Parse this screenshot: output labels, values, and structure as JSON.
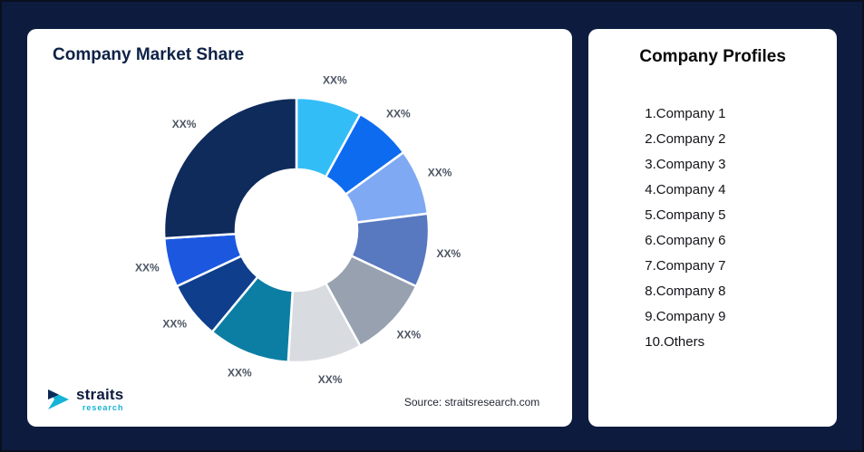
{
  "background_color": "#0D1B3E",
  "left_card": {
    "title": "Company Market Share",
    "source": "Source: straitsresearch.com",
    "logo": {
      "name": "straits",
      "sub": "research",
      "icon": "straits-arrow-icon",
      "accent_color": "#14b4d6",
      "dark_color": "#0d1b3e"
    }
  },
  "right_card": {
    "title": "Company Profiles",
    "items": [
      "1.Company 1",
      "2.Company 2",
      "3.Company 3",
      "4.Company 4",
      "5.Company 5",
      "6.Company 6",
      "7.Company 7",
      "8.Company 8",
      "9.Company 9",
      "10.Others"
    ]
  },
  "chart_data": {
    "type": "pie",
    "variant": "donut",
    "title": "Company Market Share",
    "categories": [
      "Company 1",
      "Company 2",
      "Company 3",
      "Company 4",
      "Company 5",
      "Company 6",
      "Company 7",
      "Company 8",
      "Company 9",
      "Others"
    ],
    "labels": [
      "XX%",
      "XX%",
      "XX%",
      "XX%",
      "XX%",
      "XX%",
      "XX%",
      "XX%",
      "XX%",
      "XX%"
    ],
    "values": [
      8,
      7,
      8,
      9,
      10,
      9,
      10,
      7,
      6,
      26
    ],
    "colors": [
      "#33BDF7",
      "#0D6BF0",
      "#7FA9F2",
      "#5878BF",
      "#98A1AF",
      "#D8DBE0",
      "#0C7EA4",
      "#0F3E8C",
      "#1C57DF",
      "#0E2B5C"
    ],
    "start_angle_deg": 0,
    "clockwise": true,
    "inner_radius_ratio": 0.46,
    "legend": "none",
    "slice_gap_color": "#ffffff"
  }
}
